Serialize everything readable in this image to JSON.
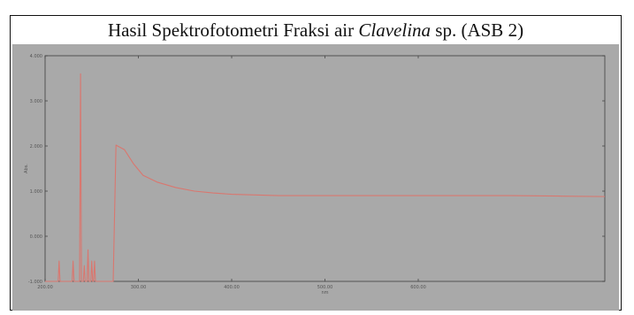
{
  "title": {
    "prefix": "Hasil Spektrofotometri Fraksi air ",
    "italic": "Clavelina",
    "suffix": " sp. (ASB 2)"
  },
  "chart_data": {
    "type": "line",
    "title": "Hasil Spektrofotometri Fraksi air Clavelina sp. (ASB 2)",
    "xlabel": "nm",
    "ylabel": "Abs.",
    "xlim": [
      200.0,
      800.0
    ],
    "ylim": [
      -1.0,
      4.0
    ],
    "x_ticks": [
      "200.00",
      "300.00",
      "400.00",
      "500.00",
      "600.00"
    ],
    "y_ticks": [
      "4.000",
      "3.000",
      "2.000",
      "1.000",
      "0.000",
      "-1.000"
    ],
    "grid": false,
    "colors": {
      "background": "#a9a9a9",
      "line": "#d9776f",
      "axis": "#3c3c3c"
    },
    "series": [
      {
        "values_x": [
          200,
          214,
          215,
          216,
          229,
          230,
          231,
          237,
          238,
          239,
          240,
          241,
          242,
          243,
          244,
          245,
          246,
          247,
          248,
          249,
          250,
          251,
          252,
          253,
          254,
          255,
          256,
          257,
          258,
          259,
          260,
          261,
          262,
          263,
          264,
          265,
          266,
          267,
          268,
          269,
          270,
          271,
          272,
          273,
          276,
          285,
          295,
          305,
          320,
          340,
          360,
          380,
          400,
          450,
          500,
          550,
          600,
          650,
          700,
          750,
          800
        ],
        "values_y": [
          -1.0,
          -1.0,
          -0.55,
          -1.0,
          -1.0,
          -0.55,
          -1.0,
          -1.0,
          3.6,
          -1.0,
          -1.0,
          -1.0,
          -0.65,
          -1.0,
          -1.0,
          -1.0,
          -0.3,
          -1.0,
          -1.0,
          -1.0,
          -0.55,
          -1.0,
          -1.0,
          -0.55,
          -1.0,
          -1.0,
          -1.0,
          -1.0,
          -1.0,
          -1.0,
          -1.0,
          -1.0,
          -1.0,
          -1.0,
          -1.0,
          -1.0,
          -1.0,
          -1.0,
          -1.0,
          -1.0,
          -1.0,
          -1.0,
          -1.0,
          -1.0,
          2.02,
          1.92,
          1.6,
          1.35,
          1.2,
          1.08,
          1.0,
          0.96,
          0.93,
          0.9,
          0.9,
          0.9,
          0.9,
          0.9,
          0.9,
          0.89,
          0.88
        ]
      }
    ]
  }
}
